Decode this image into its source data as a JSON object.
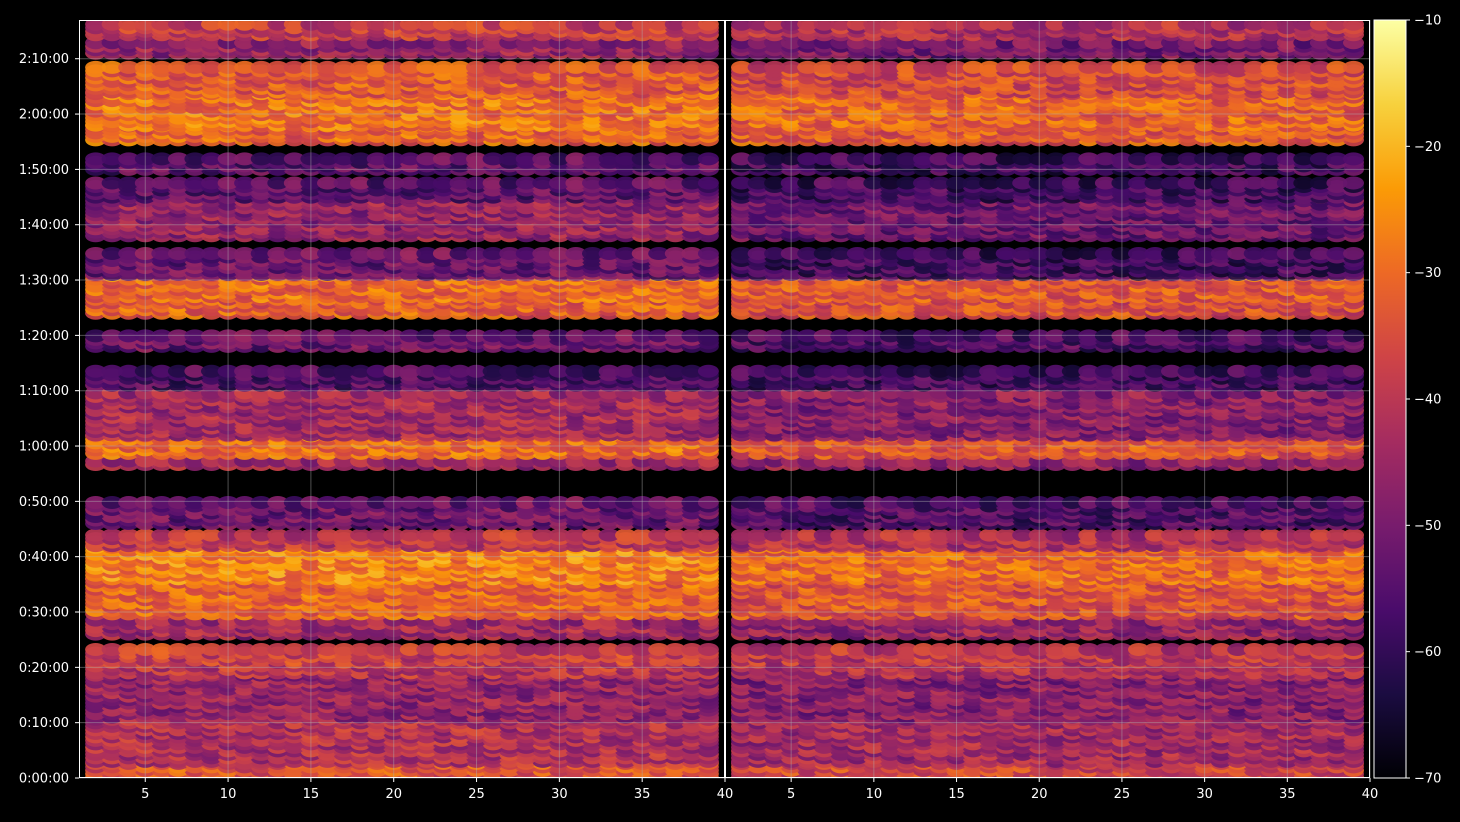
{
  "chart_data": {
    "type": "heatmap",
    "title": "",
    "xlabel": "",
    "ylabel": "",
    "background": "#000000",
    "colormap": "inferno",
    "colormap_stops": [
      "#000004",
      "#1b0c41",
      "#4a0c6b",
      "#781c6d",
      "#a52c60",
      "#cf4446",
      "#ed6925",
      "#fb9b06",
      "#f7d13d",
      "#fcffa4"
    ],
    "grid": true,
    "colorbar": {
      "min": -70,
      "max": -10,
      "ticks": [
        -10,
        -20,
        -30,
        -40,
        -50,
        -60,
        -70
      ],
      "tick_labels": [
        "−10",
        "−20",
        "−30",
        "−40",
        "−50",
        "−60",
        "−70"
      ],
      "placement": "right"
    },
    "ylim_seconds": [
      0,
      8220
    ],
    "y_ticks_seconds": [
      0,
      600,
      1200,
      1800,
      2400,
      3000,
      3600,
      4200,
      4800,
      5400,
      6000,
      6600,
      7200,
      7800
    ],
    "y_tick_labels": [
      "0:00:00",
      "0:10:00",
      "0:20:00",
      "0:30:00",
      "0:40:00",
      "0:50:00",
      "1:00:00",
      "1:10:00",
      "1:20:00",
      "1:30:00",
      "1:40:00",
      "1:50:00",
      "2:00:00",
      "2:10:00"
    ],
    "panels": [
      {
        "xlim": [
          1,
          40
        ],
        "x_ticks": [
          5,
          10,
          15,
          20,
          25,
          30,
          35,
          40
        ],
        "x_tick_labels": [
          "5",
          "10",
          "15",
          "20",
          "25",
          "30",
          "35",
          "40"
        ],
        "bins_x": [
          2,
          39
        ],
        "bands": [
          {
            "t": [
              6,
              180
            ],
            "v": -34
          },
          {
            "t": [
              180,
              660
            ],
            "v": -42
          },
          {
            "t": [
              660,
              1140
            ],
            "v": -46
          },
          {
            "t": [
              1140,
              1280
            ],
            "v": -40
          },
          {
            "t": [
              1280,
              1400
            ],
            "v": -38
          },
          {
            "t": [
              1560,
              1740
            ],
            "v": -44
          },
          {
            "t": [
              1780,
              2160
            ],
            "v": -31
          },
          {
            "t": [
              2160,
              2520
            ],
            "v": -27
          },
          {
            "t": [
              2520,
              2640
            ],
            "v": -40
          },
          {
            "t": [
              2760,
              3000
            ],
            "v": -52
          },
          {
            "t": [
              3400,
              3460
            ],
            "v": -44
          },
          {
            "t": [
              3520,
              3720
            ],
            "v": -30
          },
          {
            "t": [
              3720,
              4200
            ],
            "v": -44
          },
          {
            "t": [
              4260,
              4440
            ],
            "v": -56
          },
          {
            "t": [
              4680,
              4800
            ],
            "v": -52
          },
          {
            "t": [
              5040,
              5220
            ],
            "v": -32
          },
          {
            "t": [
              5220,
              5460
            ],
            "v": -30
          },
          {
            "t": [
              5460,
              5700
            ],
            "v": -52
          },
          {
            "t": [
              5880,
              6300
            ],
            "v": -46
          },
          {
            "t": [
              6300,
              6480
            ],
            "v": -54
          },
          {
            "t": [
              6600,
              6720
            ],
            "v": -54
          },
          {
            "t": [
              6920,
              7080
            ],
            "v": -31
          },
          {
            "t": [
              7080,
              7440
            ],
            "v": -29
          },
          {
            "t": [
              7440,
              7740
            ],
            "v": -33
          },
          {
            "t": [
              7860,
              8000
            ],
            "v": -46
          },
          {
            "t": [
              8060,
              8200
            ],
            "v": -38
          }
        ]
      },
      {
        "xlim": [
          1,
          40
        ],
        "x_ticks": [
          5,
          10,
          15,
          20,
          25,
          30,
          35,
          40
        ],
        "x_tick_labels": [
          "5",
          "10",
          "15",
          "20",
          "25",
          "30",
          "35",
          "40"
        ],
        "bins_x": [
          2,
          39
        ],
        "bands": [
          {
            "t": [
              6,
              180
            ],
            "v": -36
          },
          {
            "t": [
              180,
              660
            ],
            "v": -44
          },
          {
            "t": [
              660,
              1140
            ],
            "v": -48
          },
          {
            "t": [
              1140,
              1280
            ],
            "v": -42
          },
          {
            "t": [
              1280,
              1400
            ],
            "v": -40
          },
          {
            "t": [
              1560,
              1740
            ],
            "v": -46
          },
          {
            "t": [
              1780,
              2160
            ],
            "v": -34
          },
          {
            "t": [
              2160,
              2520
            ],
            "v": -30
          },
          {
            "t": [
              2520,
              2640
            ],
            "v": -42
          },
          {
            "t": [
              2760,
              3000
            ],
            "v": -56
          },
          {
            "t": [
              3400,
              3460
            ],
            "v": -46
          },
          {
            "t": [
              3520,
              3720
            ],
            "v": -34
          },
          {
            "t": [
              3720,
              4200
            ],
            "v": -48
          },
          {
            "t": [
              4260,
              4440
            ],
            "v": -58
          },
          {
            "t": [
              4680,
              4800
            ],
            "v": -56
          },
          {
            "t": [
              5040,
              5220
            ],
            "v": -35
          },
          {
            "t": [
              5220,
              5460
            ],
            "v": -33
          },
          {
            "t": [
              5460,
              5700
            ],
            "v": -58
          },
          {
            "t": [
              5880,
              6300
            ],
            "v": -52
          },
          {
            "t": [
              6300,
              6480
            ],
            "v": -58
          },
          {
            "t": [
              6600,
              6720
            ],
            "v": -58
          },
          {
            "t": [
              6920,
              7080
            ],
            "v": -33
          },
          {
            "t": [
              7080,
              7440
            ],
            "v": -31
          },
          {
            "t": [
              7440,
              7740
            ],
            "v": -36
          },
          {
            "t": [
              7860,
              8000
            ],
            "v": -50
          },
          {
            "t": [
              8060,
              8200
            ],
            "v": -42
          }
        ]
      }
    ]
  }
}
